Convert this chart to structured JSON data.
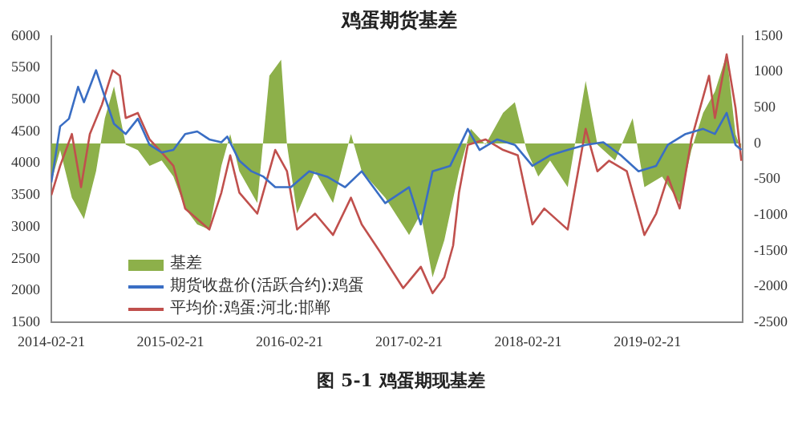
{
  "chart_data": {
    "type": "line",
    "title": "鸡蛋期货基差",
    "legend": "bottom left",
    "marker": "none",
    "xlim": [
      "2014-02-21",
      "2019-12-10"
    ],
    "xticks": [
      "2014-02-21",
      "2015-02-21",
      "2016-02-21",
      "2017-02-21",
      "2018-02-21",
      "2019-02-21"
    ],
    "ylim": [
      1500,
      6000
    ],
    "yticks": [
      1500,
      2000,
      2500,
      3000,
      3500,
      4000,
      4500,
      5000,
      5500,
      6000
    ],
    "y2lim": [
      -2500,
      1500
    ],
    "y2ticks": [
      -2500,
      -2000,
      -1500,
      -1000,
      -500,
      0,
      500,
      1000,
      1500
    ],
    "series": [
      {
        "name": "基差",
        "type": "area",
        "axis": "y2",
        "color": "#8db04a",
        "x": [
          "2014-02-21",
          "2014-03-20",
          "2014-04-25",
          "2014-06-01",
          "2014-07-08",
          "2014-08-04",
          "2014-09-01",
          "2014-10-07",
          "2014-11-13",
          "2014-12-19",
          "2015-01-25",
          "2015-03-02",
          "2015-04-07",
          "2015-05-14",
          "2015-06-20",
          "2015-07-27",
          "2015-08-23",
          "2015-09-20",
          "2015-11-14",
          "2015-12-21",
          "2016-01-26",
          "2016-02-13",
          "2016-03-15",
          "2016-05-09",
          "2016-07-03",
          "2016-08-27",
          "2016-09-29",
          "2016-12-10",
          "2017-02-21",
          "2017-03-29",
          "2017-05-04",
          "2017-06-09",
          "2017-07-24",
          "2017-08-29",
          "2017-10-13",
          "2017-12-06",
          "2018-01-11",
          "2018-02-16",
          "2018-03-24",
          "2018-04-29",
          "2018-06-22",
          "2018-08-16",
          "2018-09-21",
          "2018-11-14",
          "2019-01-07",
          "2019-02-12",
          "2019-04-07",
          "2019-05-31",
          "2019-07-06",
          "2019-08-11",
          "2019-09-16",
          "2019-10-22",
          "2019-11-18",
          "2019-12-06"
        ],
        "values": [
          -537,
          -93,
          -760,
          -1055,
          -390,
          352,
          796,
          -18,
          -93,
          -315,
          -240,
          -463,
          -907,
          -1130,
          -1204,
          -315,
          130,
          -390,
          -833,
          944,
          1167,
          -18,
          -981,
          -390,
          -833,
          130,
          -389,
          -760,
          -1278,
          -981,
          -1870,
          -1352,
          -389,
          204,
          -18,
          426,
          574,
          -93,
          -463,
          -240,
          -611,
          870,
          -18,
          -240,
          352,
          -611,
          -463,
          -833,
          -93,
          426,
          722,
          1241,
          130,
          -93
        ]
      },
      {
        "name": "期货收盘价(活跃合约):鸡蛋",
        "type": "line",
        "color": "#3a6ec4",
        "x": [
          "2014-02-21",
          "2014-03-20",
          "2014-04-16",
          "2014-05-14",
          "2014-06-01",
          "2014-07-08",
          "2014-08-04",
          "2014-09-01",
          "2014-10-07",
          "2014-11-13",
          "2014-12-19",
          "2015-01-25",
          "2015-03-02",
          "2015-04-07",
          "2015-05-14",
          "2015-06-20",
          "2015-07-27",
          "2015-08-14",
          "2015-09-20",
          "2015-10-27",
          "2015-12-03",
          "2016-01-08",
          "2016-02-25",
          "2016-04-21",
          "2016-06-15",
          "2016-08-09",
          "2016-09-29",
          "2016-12-10",
          "2017-02-21",
          "2017-03-29",
          "2017-05-04",
          "2017-06-27",
          "2017-08-20",
          "2017-09-25",
          "2017-11-18",
          "2018-01-11",
          "2018-03-06",
          "2018-04-29",
          "2018-06-22",
          "2018-08-16",
          "2018-10-09",
          "2018-12-02",
          "2019-01-25",
          "2019-03-20",
          "2019-04-25",
          "2019-06-18",
          "2019-08-11",
          "2019-09-16",
          "2019-10-22",
          "2019-11-18",
          "2019-12-06"
        ],
        "values": [
          3700,
          4580,
          4700,
          5200,
          4960,
          5460,
          5040,
          4620,
          4460,
          4700,
          4290,
          4170,
          4210,
          4460,
          4500,
          4375,
          4330,
          4420,
          4040,
          3875,
          3790,
          3625,
          3625,
          3875,
          3790,
          3625,
          3875,
          3375,
          3625,
          3040,
          3875,
          3960,
          4540,
          4210,
          4375,
          4290,
          3960,
          4125,
          4210,
          4290,
          4330,
          4125,
          3875,
          3960,
          4290,
          4460,
          4540,
          4460,
          4790,
          4290,
          4210
        ]
      },
      {
        "name": "平均价:鸡蛋:河北:邯郸",
        "type": "line",
        "color": "#c0504d",
        "x": [
          "2014-02-21",
          "2014-03-20",
          "2014-04-25",
          "2014-05-23",
          "2014-06-19",
          "2014-07-26",
          "2014-08-28",
          "2014-09-19",
          "2014-10-07",
          "2014-11-13",
          "2014-12-19",
          "2015-01-25",
          "2015-03-02",
          "2015-04-07",
          "2015-05-14",
          "2015-06-20",
          "2015-07-27",
          "2015-08-23",
          "2015-09-20",
          "2015-11-14",
          "2016-01-08",
          "2016-02-13",
          "2016-03-15",
          "2016-05-09",
          "2016-07-03",
          "2016-08-27",
          "2016-09-29",
          "2016-11-22",
          "2017-02-03",
          "2017-03-29",
          "2017-05-04",
          "2017-06-09",
          "2017-07-06",
          "2017-07-24",
          "2017-08-20",
          "2017-10-13",
          "2017-12-06",
          "2018-01-20",
          "2018-03-06",
          "2018-04-11",
          "2018-06-22",
          "2018-08-16",
          "2018-09-21",
          "2018-10-27",
          "2018-12-20",
          "2019-02-12",
          "2019-03-20",
          "2019-04-25",
          "2019-05-31",
          "2019-07-06",
          "2019-08-29",
          "2019-09-16",
          "2019-10-22",
          "2019-11-18",
          "2019-12-06"
        ],
        "values": [
          3500,
          3960,
          4460,
          3625,
          4460,
          4920,
          5460,
          5375,
          4710,
          4790,
          4375,
          4170,
          3960,
          3290,
          3125,
          2960,
          3540,
          4125,
          3540,
          3210,
          4210,
          3875,
          2960,
          3210,
          2875,
          3460,
          3040,
          2625,
          2040,
          2375,
          1960,
          2210,
          2710,
          3540,
          4290,
          4375,
          4210,
          4125,
          3040,
          3290,
          2960,
          4540,
          3875,
          4040,
          3875,
          2875,
          3210,
          3790,
          3290,
          4375,
          5375,
          4710,
          5710,
          4875,
          4040
        ]
      }
    ],
    "annotations": [
      "图 5-1  鸡蛋期现基差"
    ]
  }
}
